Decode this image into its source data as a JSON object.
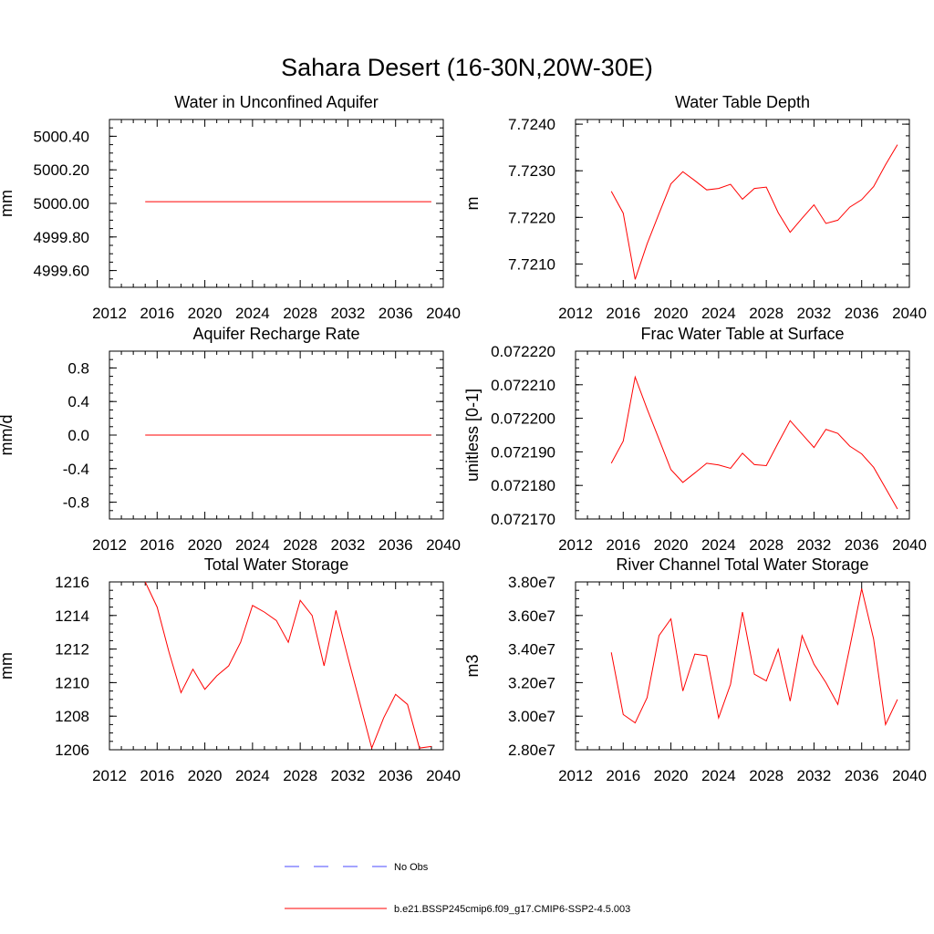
{
  "figure_title": "Sahara Desert (16-30N,20W-30E)",
  "colors": {
    "model_line": "#ff0000",
    "obs_line": "#4a4aff",
    "axis": "#000000"
  },
  "legend": [
    {
      "label": "No Obs",
      "style": "dashed",
      "color": "#4a4aff"
    },
    {
      "label": "b.e21.BSSP245cmip6.f09_g17.CMIP6-SSP2-4.5.003",
      "style": "solid",
      "color": "#ff0000"
    }
  ],
  "chart_data": [
    {
      "type": "line",
      "title": "Water in Unconfined Aquifer",
      "ylabel": "mm",
      "xlim": [
        2012,
        2040
      ],
      "ylim": [
        4999.5,
        5000.5
      ],
      "yticks": [
        4999.6,
        4999.8,
        5000.0,
        5000.2,
        5000.4
      ],
      "ytick_labels": [
        "4999.60",
        "4999.80",
        "5000.00",
        "5000.20",
        "5000.40"
      ],
      "xticks": [
        2012,
        2016,
        2020,
        2024,
        2028,
        2032,
        2036,
        2040
      ],
      "xtick_labels": [
        "2012",
        "2016",
        "2020",
        "2024",
        "2028",
        "2032",
        "2036",
        "2040"
      ],
      "series": [
        {
          "x": [
            2015,
            2016,
            2017,
            2018,
            2019,
            2020,
            2021,
            2022,
            2023,
            2024,
            2025,
            2026,
            2027,
            2028,
            2029,
            2030,
            2031,
            2032,
            2033,
            2034,
            2035,
            2036,
            2037,
            2038,
            2039
          ],
          "y": [
            5000.01,
            5000.01,
            5000.01,
            5000.01,
            5000.01,
            5000.01,
            5000.01,
            5000.01,
            5000.01,
            5000.01,
            5000.01,
            5000.01,
            5000.01,
            5000.01,
            5000.01,
            5000.01,
            5000.01,
            5000.01,
            5000.01,
            5000.01,
            5000.01,
            5000.01,
            5000.01,
            5000.01,
            5000.01
          ]
        }
      ]
    },
    {
      "type": "line",
      "title": "Water Table Depth",
      "ylabel": "m",
      "xlim": [
        2012,
        2040
      ],
      "ylim": [
        7.7205,
        7.7241
      ],
      "yticks": [
        7.721,
        7.722,
        7.723,
        7.724
      ],
      "ytick_labels": [
        "7.7210",
        "7.7220",
        "7.7230",
        "7.7240"
      ],
      "xticks": [
        2012,
        2016,
        2020,
        2024,
        2028,
        2032,
        2036,
        2040
      ],
      "xtick_labels": [
        "2012",
        "2016",
        "2020",
        "2024",
        "2028",
        "2032",
        "2036",
        "2040"
      ],
      "series": [
        {
          "x": [
            2015,
            2016,
            2017,
            2018,
            2019,
            2020,
            2021,
            2022,
            2023,
            2024,
            2025,
            2026,
            2027,
            2028,
            2029,
            2030,
            2031,
            2032,
            2033,
            2034,
            2035,
            2036,
            2037,
            2038,
            2039
          ],
          "y": [
            7.72256,
            7.72209,
            7.72067,
            7.72143,
            7.72208,
            7.72272,
            7.72298,
            7.72279,
            7.72259,
            7.72262,
            7.72271,
            7.72239,
            7.72262,
            7.72265,
            7.7221,
            7.72168,
            7.72198,
            7.72227,
            7.72187,
            7.72194,
            7.72222,
            7.72238,
            7.72266,
            7.72313,
            7.72356
          ]
        }
      ]
    },
    {
      "type": "line",
      "title": "Aquifer Recharge Rate",
      "ylabel": "mm/d",
      "xlim": [
        2012,
        2040
      ],
      "ylim": [
        -1.0,
        1.0
      ],
      "yticks": [
        -0.8,
        -0.4,
        0.0,
        0.4,
        0.8
      ],
      "ytick_labels": [
        "-0.8",
        "-0.4",
        "0.0",
        "0.4",
        "0.8"
      ],
      "xticks": [
        2012,
        2016,
        2020,
        2024,
        2028,
        2032,
        2036,
        2040
      ],
      "xtick_labels": [
        "2012",
        "2016",
        "2020",
        "2024",
        "2028",
        "2032",
        "2036",
        "2040"
      ],
      "series": [
        {
          "x": [
            2015,
            2016,
            2017,
            2018,
            2019,
            2020,
            2021,
            2022,
            2023,
            2024,
            2025,
            2026,
            2027,
            2028,
            2029,
            2030,
            2031,
            2032,
            2033,
            2034,
            2035,
            2036,
            2037,
            2038,
            2039
          ],
          "y": [
            0,
            0,
            0,
            0,
            0,
            0,
            0,
            0,
            0,
            0,
            0,
            0,
            0,
            0,
            0,
            0,
            0,
            0,
            0,
            0,
            0,
            0,
            0,
            0,
            0
          ]
        }
      ]
    },
    {
      "type": "line",
      "title": "Frac Water Table at Surface",
      "ylabel": "unitless [0-1]",
      "xlim": [
        2012,
        2040
      ],
      "ylim": [
        0.07217,
        0.07222
      ],
      "yticks": [
        0.07217,
        0.07218,
        0.07219,
        0.0722,
        0.07221,
        0.07222
      ],
      "ytick_labels": [
        "0.072170",
        "0.072180",
        "0.072190",
        "0.072200",
        "0.072210",
        "0.072220"
      ],
      "xticks": [
        2012,
        2016,
        2020,
        2024,
        2028,
        2032,
        2036,
        2040
      ],
      "xtick_labels": [
        "2012",
        "2016",
        "2020",
        "2024",
        "2028",
        "2032",
        "2036",
        "2040"
      ],
      "series": [
        {
          "x": [
            2015,
            2016,
            2017,
            2018,
            2019,
            2020,
            2021,
            2022,
            2023,
            2024,
            2025,
            2026,
            2027,
            2028,
            2029,
            2030,
            2031,
            2032,
            2033,
            2034,
            2035,
            2036,
            2037,
            2038,
            2039
          ],
          "y": [
            0.0721866,
            0.0721932,
            0.0722123,
            0.0722028,
            0.0721938,
            0.0721847,
            0.0721809,
            0.0721837,
            0.0721866,
            0.0721861,
            0.0721851,
            0.0721896,
            0.0721862,
            0.0721859,
            0.0721927,
            0.0721993,
            0.0721953,
            0.0721913,
            0.0721967,
            0.0721955,
            0.0721917,
            0.0721894,
            0.0721854,
            0.0721792,
            0.072173
          ]
        }
      ]
    },
    {
      "type": "line",
      "title": "Total Water Storage",
      "ylabel": "mm",
      "xlim": [
        2012,
        2040
      ],
      "ylim": [
        1206,
        1216
      ],
      "yticks": [
        1206,
        1208,
        1210,
        1212,
        1214,
        1216
      ],
      "ytick_labels": [
        "1206",
        "1208",
        "1210",
        "1212",
        "1214",
        "1216"
      ],
      "xticks": [
        2012,
        2016,
        2020,
        2024,
        2028,
        2032,
        2036,
        2040
      ],
      "xtick_labels": [
        "2012",
        "2016",
        "2020",
        "2024",
        "2028",
        "2032",
        "2036",
        "2040"
      ],
      "series": [
        {
          "x": [
            2015,
            2016,
            2017,
            2018,
            2019,
            2020,
            2021,
            2022,
            2023,
            2024,
            2025,
            2026,
            2027,
            2028,
            2029,
            2030,
            2031,
            2032,
            2033,
            2034,
            2035,
            2036,
            2037,
            2038,
            2039
          ],
          "y": [
            1216.0,
            1214.5,
            1211.8,
            1209.4,
            1210.8,
            1209.6,
            1210.4,
            1211.0,
            1212.4,
            1214.6,
            1214.2,
            1213.7,
            1212.4,
            1214.9,
            1214.0,
            1211.0,
            1214.3,
            1211.5,
            1208.8,
            1206.1,
            1207.9,
            1209.3,
            1208.7,
            1206.1,
            1206.2
          ]
        }
      ]
    },
    {
      "type": "line",
      "title": "River Channel Total Water Storage",
      "ylabel": "m3",
      "xlim": [
        2012,
        2040
      ],
      "ylim": [
        28000000,
        38000000
      ],
      "yticks": [
        28000000,
        30000000,
        32000000,
        34000000,
        36000000,
        38000000
      ],
      "ytick_labels": [
        "2.80e7",
        "3.00e7",
        "3.20e7",
        "3.40e7",
        "3.60e7",
        "3.80e7"
      ],
      "xticks": [
        2012,
        2016,
        2020,
        2024,
        2028,
        2032,
        2036,
        2040
      ],
      "xtick_labels": [
        "2012",
        "2016",
        "2020",
        "2024",
        "2028",
        "2032",
        "2036",
        "2040"
      ],
      "series": [
        {
          "x": [
            2015,
            2016,
            2017,
            2018,
            2019,
            2020,
            2021,
            2022,
            2023,
            2024,
            2025,
            2026,
            2027,
            2028,
            2029,
            2030,
            2031,
            2032,
            2033,
            2034,
            2035,
            2036,
            2037,
            2038,
            2039
          ],
          "y": [
            33800000,
            30100000,
            29600000,
            31100000,
            34800000,
            35800000,
            31500000,
            33700000,
            33600000,
            29900000,
            31900000,
            36200000,
            32500000,
            32100000,
            34000000,
            30900000,
            34800000,
            33100000,
            32000000,
            30700000,
            34100000,
            37600000,
            34600000,
            29500000,
            31000000
          ]
        }
      ]
    }
  ]
}
